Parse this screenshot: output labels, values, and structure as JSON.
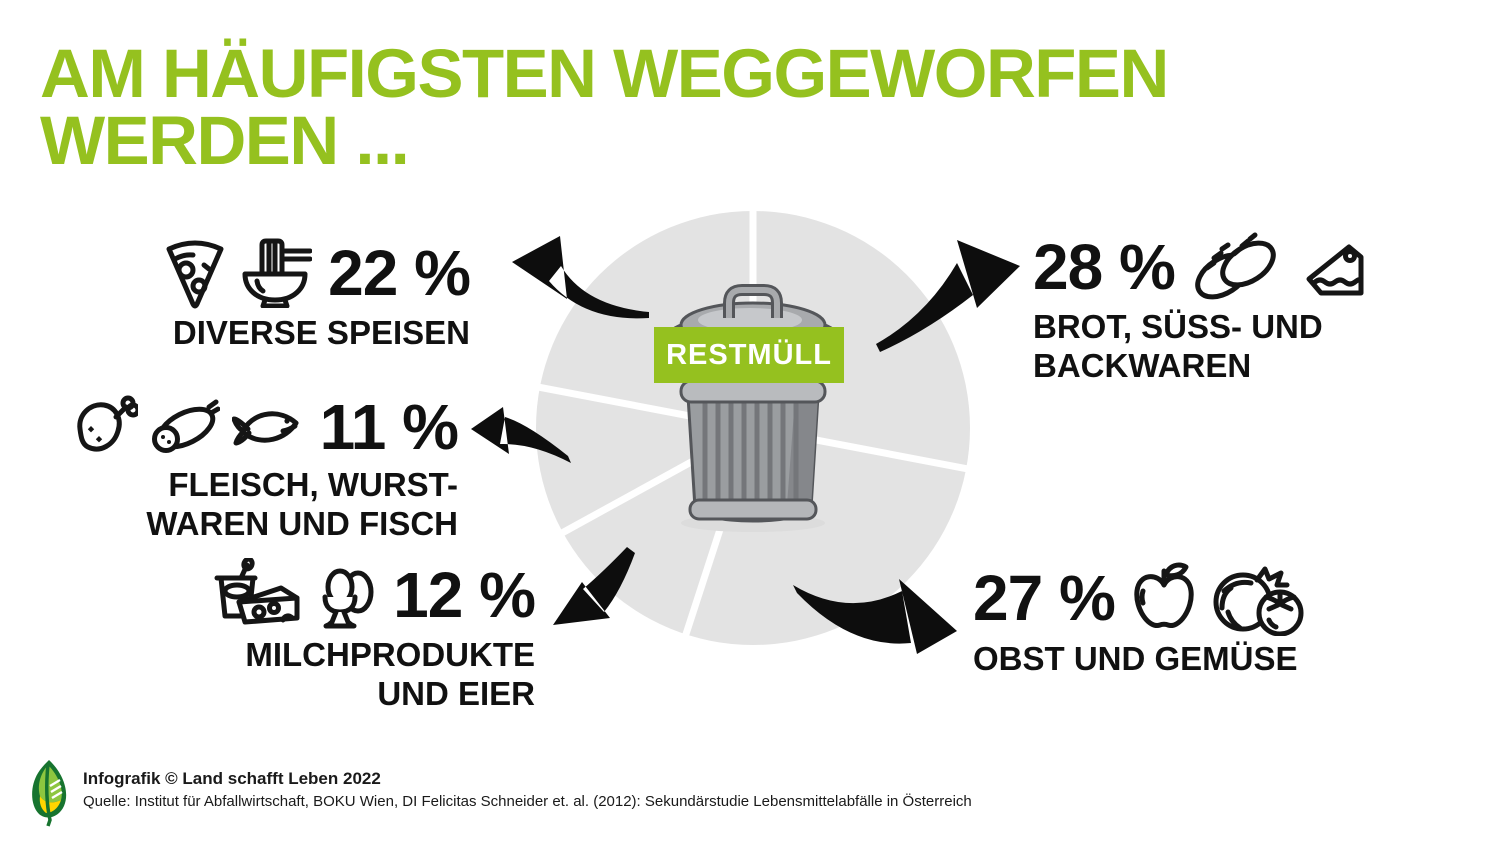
{
  "title": {
    "line1": "AM HÄUFIGSTEN WEGGEWORFEN",
    "line2": "WERDEN ..."
  },
  "center": {
    "bin_label": "RESTMÜLL"
  },
  "categories": [
    {
      "id": "diverse-speisen",
      "percent": "22 %",
      "value": 22,
      "label_lines": [
        "DIVERSE SPEISEN",
        ""
      ],
      "icons": [
        "pizza-icon",
        "noodle-bowl-icon"
      ],
      "side": "left"
    },
    {
      "id": "fleisch-wurstwaren-fisch",
      "percent": "11 %",
      "value": 11,
      "label_lines": [
        "FLEISCH, WURST-",
        "WAREN UND FISCH"
      ],
      "icons": [
        "drumstick-icon",
        "sausage-icon",
        "fish-icon"
      ],
      "side": "left"
    },
    {
      "id": "milchprodukte-eier",
      "percent": "12 %",
      "value": 12,
      "label_lines": [
        "MILCHPRODUKTE",
        "UND EIER"
      ],
      "icons": [
        "yogurt-cheese-icon",
        "eggs-icon"
      ],
      "side": "left"
    },
    {
      "id": "brot-suess-backwaren",
      "percent": "28 %",
      "value": 28,
      "label_lines": [
        "BROT, SÜSS- UND",
        "BACKWAREN"
      ],
      "icons": [
        "bread-icon",
        "cake-icon"
      ],
      "side": "right"
    },
    {
      "id": "obst-gemuese",
      "percent": "27 %",
      "value": 27,
      "label_lines": [
        "OBST UND GEMÜSE",
        ""
      ],
      "icons": [
        "apple-icon",
        "cabbage-tomato-icon"
      ],
      "side": "right"
    }
  ],
  "chart_data": {
    "type": "pie",
    "title": "AM HÄUFIGSTEN WEGGEWORFEN WERDEN ...",
    "center_label": "RESTMÜLL",
    "unit": "%",
    "categories": [
      "BROT, SÜSS- UND BACKWAREN",
      "OBST UND GEMÜSE",
      "MILCHPRODUKTE UND EIER",
      "FLEISCH, WURSTWAREN UND FISCH",
      "DIVERSE SPEISEN"
    ],
    "values": [
      28,
      27,
      12,
      11,
      22
    ],
    "start_angle_deg": 0,
    "direction": "clockwise",
    "legend_position": "around",
    "slice_color": "#e3e3e3",
    "divider_color": "#ffffff"
  },
  "footer": {
    "credit": "Infografik © Land schafft Leben 2022",
    "source": "Quelle: Institut für Abfallwirtschaft, BOKU Wien, DI Felicitas Schneider et. al. (2012): Sekundärstudie Lebensmittelabfälle in Österreich"
  },
  "colors": {
    "green": "#95c11f",
    "text": "#111111",
    "pie_gray": "#e3e3e3",
    "arrow_black": "#0d0d0d"
  }
}
